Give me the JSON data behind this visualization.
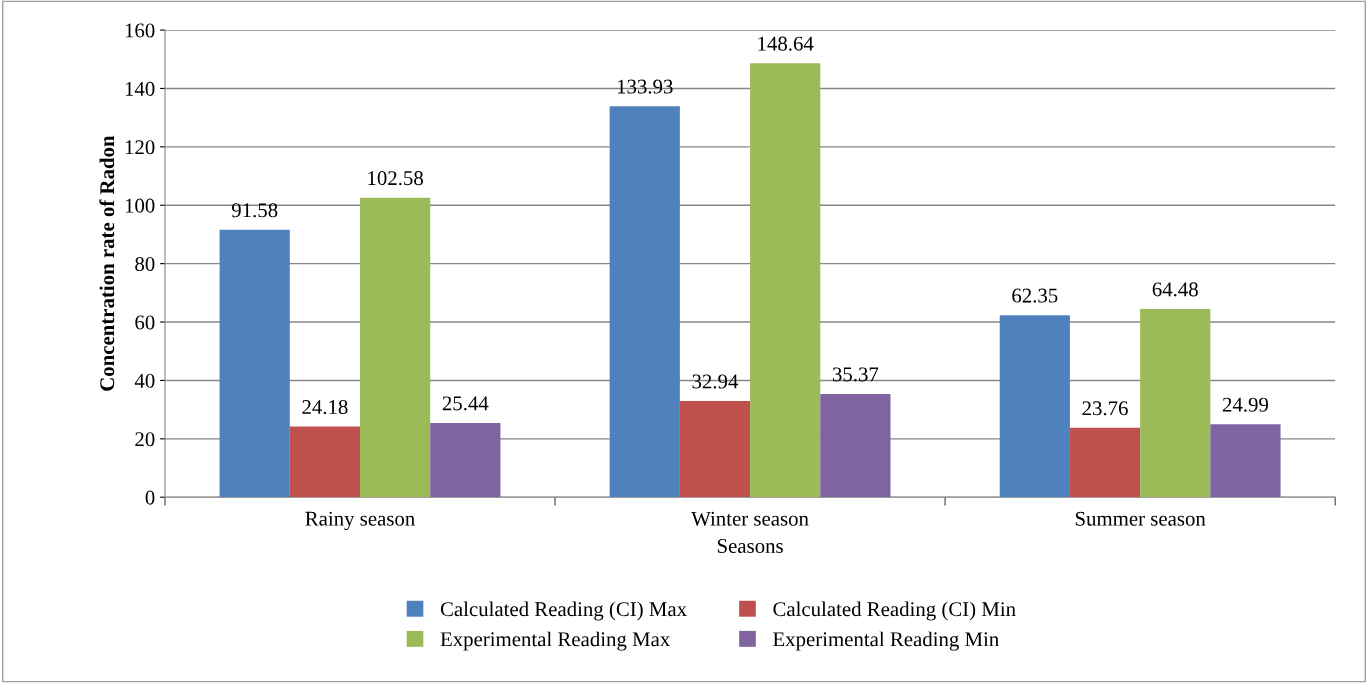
{
  "chart_data": {
    "type": "bar",
    "xlabel": "Seasons",
    "ylabel": "Concentration rate of Radon",
    "categories": [
      "Rainy season",
      "Winter season",
      "Summer season"
    ],
    "series": [
      {
        "name": "Calculated Reading (CI) Max",
        "color": "#4f81bd",
        "values": [
          91.58,
          133.93,
          62.35
        ]
      },
      {
        "name": "Calculated Reading (CI) Min",
        "color": "#c0504d",
        "values": [
          24.18,
          32.94,
          23.76
        ]
      },
      {
        "name": "Experimental Reading Max",
        "color": "#9bbb59",
        "values": [
          102.58,
          148.64,
          64.48
        ]
      },
      {
        "name": "Experimental Reading Min",
        "color": "#8064a2",
        "values": [
          25.44,
          35.37,
          24.99
        ]
      }
    ],
    "ylim": [
      0,
      160
    ],
    "yticks": [
      0,
      20,
      40,
      60,
      80,
      100,
      120,
      140,
      160
    ],
    "grid": "y",
    "legend": "bottom",
    "data_labels": true
  }
}
